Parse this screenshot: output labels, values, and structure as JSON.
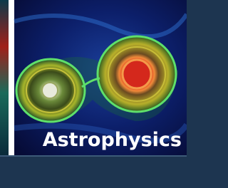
{
  "tile": {
    "label": "Astrophysics"
  }
}
